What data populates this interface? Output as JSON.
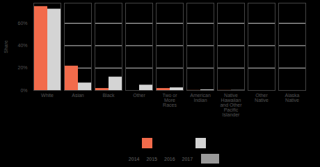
{
  "chart_data": {
    "type": "bar",
    "y_label": "Share",
    "categories": [
      "White",
      "Asian",
      "Black",
      "Other",
      "Two or More Races",
      "American Indian",
      "Native Hawaiian and Other Pacific Islander",
      "Other Native",
      "Alaska Native"
    ],
    "series": [
      {
        "color": "#f26b4b",
        "values": [
          75,
          21.8,
          1.8,
          0,
          1.8,
          0.1,
          0.1,
          0,
          0
        ]
      },
      {
        "color": "#d4d4d4",
        "values": [
          72.7,
          6.7,
          12,
          4.8,
          2.4,
          0.6,
          0.2,
          0,
          0
        ]
      }
    ],
    "ylim": [
      0,
      78
    ],
    "yticks": [
      {
        "value": 0,
        "label": "0%"
      },
      {
        "value": 20,
        "label": "20%"
      },
      {
        "value": 40,
        "label": "40%"
      },
      {
        "value": 60,
        "label": "60%"
      }
    ],
    "grid": true,
    "selector_labels": [
      "2014",
      "2015",
      "2016",
      "2017"
    ]
  }
}
